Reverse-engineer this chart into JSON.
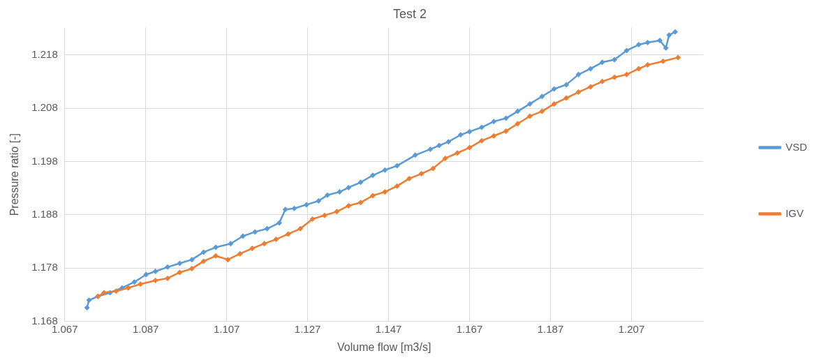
{
  "chart_data": {
    "type": "line",
    "title": "Test 2",
    "xlabel": "Volume flow [m3/s]",
    "ylabel": "Pressure ratio [-]",
    "xlim": [
      1.067,
      1.2248
    ],
    "xticks": [
      1.067,
      1.087,
      1.107,
      1.127,
      1.147,
      1.167,
      1.187,
      1.207
    ],
    "ylim": [
      1.168,
      1.2231
    ],
    "yticks": [
      1.168,
      1.178,
      1.188,
      1.198,
      1.208,
      1.218
    ],
    "grid": true,
    "legend": "right",
    "marker": "diamond",
    "line_style": "solid",
    "series": [
      {
        "name": "VSD",
        "color": "#5b9bd5",
        "x": [
          1.0725,
          1.073,
          1.0752,
          1.0782,
          1.0812,
          1.0842,
          1.0871,
          1.0894,
          1.0924,
          1.0954,
          1.0984,
          1.1013,
          1.1043,
          1.108,
          1.111,
          1.114,
          1.117,
          1.12,
          1.1215,
          1.1237,
          1.1267,
          1.1297,
          1.1319,
          1.1349,
          1.1371,
          1.1401,
          1.1431,
          1.1461,
          1.1491,
          1.1536,
          1.1573,
          1.1595,
          1.1618,
          1.1648,
          1.167,
          1.17,
          1.173,
          1.176,
          1.1789,
          1.1819,
          1.1849,
          1.1879,
          1.1909,
          1.1939,
          1.1969,
          1.1998,
          1.2028,
          1.2058,
          1.2088,
          1.211,
          1.214,
          1.2155,
          1.2163,
          1.2178
        ],
        "values": [
          1.1706,
          1.172,
          1.1727,
          1.1734,
          1.1743,
          1.1754,
          1.1768,
          1.1774,
          1.1782,
          1.1789,
          1.1796,
          1.181,
          1.1819,
          1.1826,
          1.184,
          1.1848,
          1.1854,
          1.1865,
          1.189,
          1.1892,
          1.1899,
          1.1906,
          1.1917,
          1.1923,
          1.1931,
          1.1941,
          1.1954,
          1.1964,
          1.1972,
          1.1992,
          1.2003,
          1.201,
          1.2017,
          1.203,
          1.2036,
          1.2044,
          1.2055,
          1.2061,
          1.2074,
          1.2088,
          1.2102,
          1.2116,
          1.2124,
          1.2143,
          1.2154,
          1.2166,
          1.2171,
          1.2188,
          1.2199,
          1.2203,
          1.2207,
          1.2193,
          1.2217,
          1.2223
        ]
      },
      {
        "name": "IGV",
        "color": "#ed7d31",
        "x": [
          1.0752,
          1.0767,
          1.0797,
          1.0827,
          1.0857,
          1.0894,
          1.0924,
          1.0954,
          1.0984,
          1.1013,
          1.1043,
          1.1073,
          1.1103,
          1.1133,
          1.1163,
          1.1192,
          1.1222,
          1.1252,
          1.1282,
          1.1312,
          1.1342,
          1.1371,
          1.1401,
          1.1431,
          1.1461,
          1.1491,
          1.1521,
          1.1551,
          1.158,
          1.161,
          1.164,
          1.167,
          1.17,
          1.173,
          1.176,
          1.1789,
          1.1819,
          1.1849,
          1.1879,
          1.1909,
          1.1939,
          1.1969,
          1.1998,
          1.2028,
          1.2058,
          1.2088,
          1.211,
          1.2148,
          1.2185
        ],
        "values": [
          1.1727,
          1.1734,
          1.1737,
          1.1743,
          1.175,
          1.1757,
          1.1761,
          1.1772,
          1.1779,
          1.1793,
          1.1803,
          1.1796,
          1.1807,
          1.1817,
          1.1826,
          1.1834,
          1.1844,
          1.1854,
          1.1872,
          1.1879,
          1.1886,
          1.1897,
          1.1903,
          1.1916,
          1.1923,
          1.1934,
          1.1948,
          1.1957,
          1.1967,
          1.1986,
          1.1996,
          1.2006,
          1.2019,
          1.2028,
          1.2037,
          1.2051,
          1.2065,
          1.2074,
          1.2088,
          1.2099,
          1.211,
          1.212,
          1.213,
          1.2138,
          1.2143,
          1.2154,
          1.2161,
          1.2168,
          1.2175
        ]
      }
    ]
  }
}
